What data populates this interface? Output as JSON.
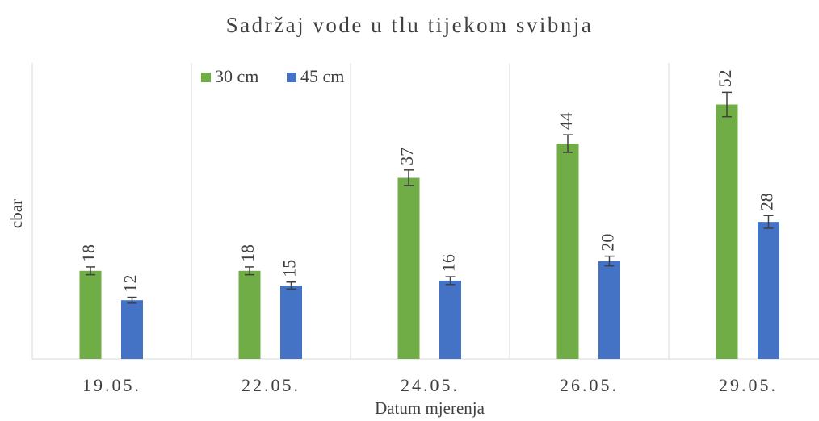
{
  "chart_data": {
    "type": "bar",
    "title": "Sadržaj vode u tlu tijekom svibnja",
    "x_label": "Datum mjerenja",
    "y_label": "cbar",
    "categories": [
      "19.05.",
      "22.05.",
      "24.05.",
      "26.05.",
      "29.05."
    ],
    "series": [
      {
        "name": "30 cm",
        "color": "#70ad47",
        "values": [
          18,
          18,
          37,
          44,
          52
        ],
        "errors": [
          0.8,
          0.8,
          1.6,
          1.8,
          2.5
        ]
      },
      {
        "name": "45 cm",
        "color": "#4472c4",
        "values": [
          12,
          15,
          16,
          20,
          28
        ],
        "errors": [
          0.6,
          0.7,
          0.8,
          1.0,
          1.3
        ]
      }
    ],
    "ylim": [
      0,
      60
    ],
    "legend": "top-left"
  }
}
